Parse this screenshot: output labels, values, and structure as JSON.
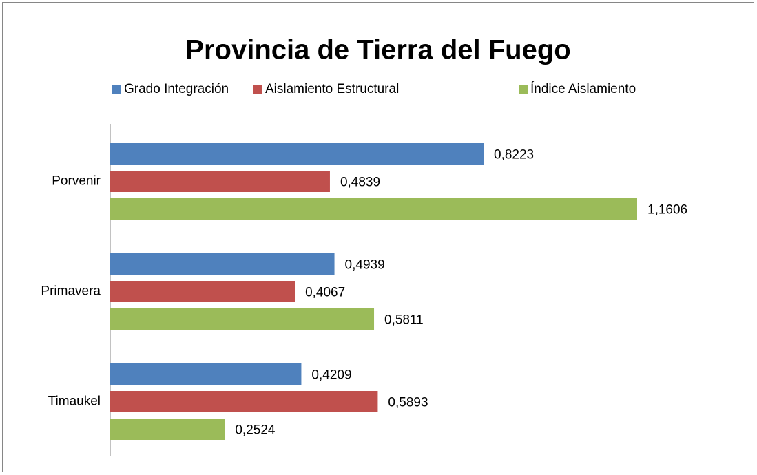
{
  "chart_data": {
    "type": "bar",
    "orientation": "horizontal",
    "title": "Provincia de Tierra del Fuego",
    "categories": [
      "Porvenir",
      "Primavera",
      "Timaukel"
    ],
    "series": [
      {
        "name": "Grado Integración",
        "color": "#4f81bd",
        "values": [
          0.8223,
          0.4939,
          0.4209
        ],
        "value_labels": [
          "0,8223",
          "0,4939",
          "0,4209"
        ]
      },
      {
        "name": "Aislamiento Estructural",
        "color": "#c0504d",
        "values": [
          0.4839,
          0.4067,
          0.5893
        ],
        "value_labels": [
          "0,4839",
          "0,4067",
          "0,5893"
        ]
      },
      {
        "name": "Índice Aislamiento",
        "color": "#9bbb59",
        "values": [
          1.1606,
          0.5811,
          0.2524
        ],
        "value_labels": [
          "1,1606",
          "0,5811",
          "0,2524"
        ]
      }
    ],
    "legend": "top"
  }
}
